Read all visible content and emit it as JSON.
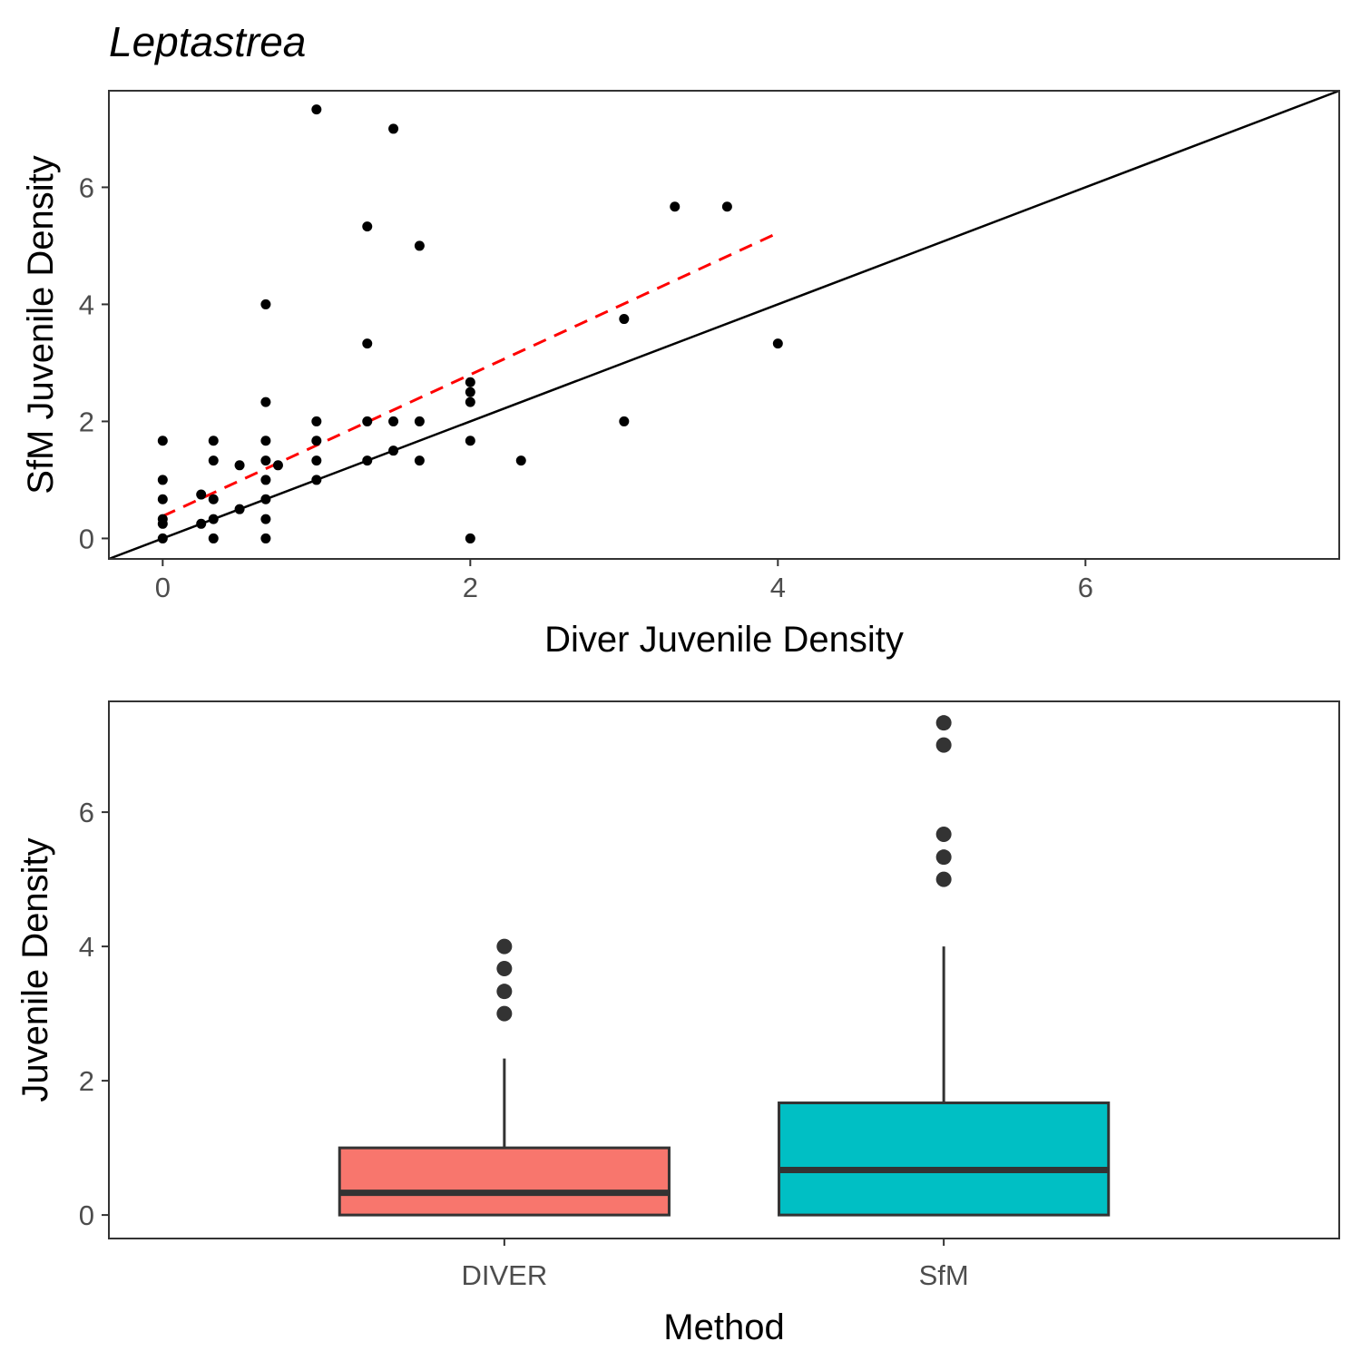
{
  "chart_data": [
    {
      "type": "scatter",
      "title": "Leptastrea",
      "xlabel": "Diver Juvenile Density",
      "ylabel": "SfM Juvenile Density",
      "xlim": [
        -0.35,
        7.65
      ],
      "ylim": [
        -0.35,
        7.65
      ],
      "xticks": [
        0,
        2,
        4,
        6
      ],
      "yticks": [
        0,
        2,
        4,
        6
      ],
      "grid": false,
      "points": [
        [
          1.0,
          7.33
        ],
        [
          1.5,
          7.0
        ],
        [
          3.33,
          5.67
        ],
        [
          3.67,
          5.67
        ],
        [
          1.33,
          5.33
        ],
        [
          1.67,
          5.0
        ],
        [
          0.67,
          4.0
        ],
        [
          3.0,
          3.75
        ],
        [
          1.33,
          3.33
        ],
        [
          4.0,
          3.33
        ],
        [
          2.0,
          2.67
        ],
        [
          2.0,
          2.5
        ],
        [
          2.0,
          2.33
        ],
        [
          0.67,
          2.33
        ],
        [
          1.0,
          2.0
        ],
        [
          1.33,
          2.0
        ],
        [
          1.5,
          2.0
        ],
        [
          1.67,
          2.0
        ],
        [
          3.0,
          2.0
        ],
        [
          0.0,
          1.67
        ],
        [
          0.33,
          1.67
        ],
        [
          0.67,
          1.67
        ],
        [
          1.0,
          1.67
        ],
        [
          2.0,
          1.67
        ],
        [
          1.5,
          1.5
        ],
        [
          0.33,
          1.33
        ],
        [
          0.67,
          1.33
        ],
        [
          1.0,
          1.33
        ],
        [
          1.33,
          1.33
        ],
        [
          1.67,
          1.33
        ],
        [
          2.33,
          1.33
        ],
        [
          0.5,
          1.25
        ],
        [
          0.75,
          1.25
        ],
        [
          0.0,
          1.0
        ],
        [
          0.67,
          1.0
        ],
        [
          1.0,
          1.0
        ],
        [
          0.25,
          0.75
        ],
        [
          0.0,
          0.67
        ],
        [
          0.33,
          0.67
        ],
        [
          0.67,
          0.67
        ],
        [
          0.5,
          0.5
        ],
        [
          0.0,
          0.33
        ],
        [
          0.33,
          0.33
        ],
        [
          0.67,
          0.33
        ],
        [
          0.0,
          0.25
        ],
        [
          0.25,
          0.25
        ],
        [
          0.0,
          0.0
        ],
        [
          0.33,
          0.0
        ],
        [
          0.67,
          0.0
        ],
        [
          2.0,
          0.0
        ]
      ],
      "identity_line": {
        "slope": 1,
        "intercept": 0,
        "color": "#000000"
      },
      "fit_line": {
        "x": [
          0,
          4
        ],
        "y": [
          0.38,
          5.22
        ],
        "color": "#ff0000",
        "dashed": true
      },
      "point_color": "#000000"
    },
    {
      "type": "box",
      "title": "",
      "xlabel": "Method",
      "ylabel": "Juvenile Density",
      "ylim": [
        -0.35,
        7.65
      ],
      "yticks": [
        0,
        2,
        4,
        6
      ],
      "grid": false,
      "categories": [
        "DIVER",
        "SfM"
      ],
      "boxes": [
        {
          "name": "DIVER",
          "q1": 0,
          "median": 0.33,
          "q3": 1.0,
          "whisker_low": 0,
          "whisker_high": 2.33,
          "outliers": [
            3.0,
            3.33,
            3.67,
            4.0
          ],
          "fill": "#f8766d"
        },
        {
          "name": "SfM",
          "q1": 0,
          "median": 0.67,
          "q3": 1.67,
          "whisker_low": 0,
          "whisker_high": 4.0,
          "outliers": [
            5.0,
            5.33,
            5.67,
            7.0,
            7.33
          ],
          "fill": "#00bfc4"
        }
      ],
      "outline_color": "#333333"
    }
  ]
}
